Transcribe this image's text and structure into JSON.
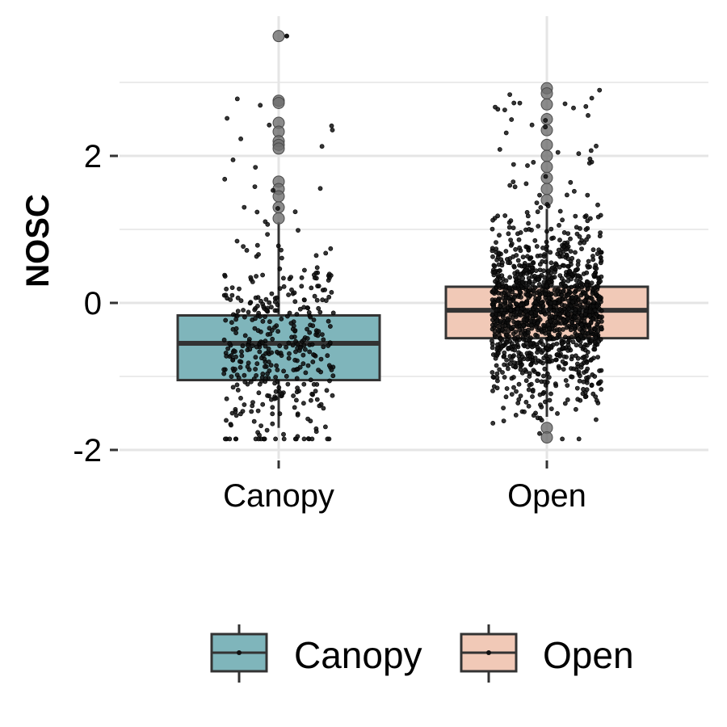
{
  "chart_data": {
    "type": "boxplot",
    "title": "",
    "xlabel": "",
    "ylabel": "NOSC",
    "categories": [
      "Canopy",
      "Open"
    ],
    "yticks": [
      -2,
      0,
      2
    ],
    "ylim": [
      -2.1,
      3.75
    ],
    "grid": true,
    "legend_position": "bottom",
    "legend": [
      {
        "label": "Canopy",
        "color": "#7fb5bb"
      },
      {
        "label": "Open",
        "color": "#f1c9b7"
      }
    ],
    "series": [
      {
        "name": "Canopy",
        "color": "#7fb5bb",
        "min": -1.7,
        "q1": -1.05,
        "median": -0.55,
        "q3": -0.17,
        "max": 1.1,
        "outliers": [
          3.63,
          2.75,
          2.72,
          2.45,
          2.33,
          2.2,
          2.15,
          2.1,
          1.65,
          1.55,
          1.45,
          1.3,
          1.15
        ],
        "jitter_count": 420
      },
      {
        "name": "Open",
        "color": "#f1c9b7",
        "min": -1.55,
        "q1": -0.48,
        "median": -0.1,
        "q3": 0.22,
        "max": 1.28,
        "outliers": [
          2.92,
          2.85,
          2.7,
          2.5,
          2.35,
          2.15,
          2.0,
          1.85,
          1.7,
          1.55,
          1.4,
          -1.7,
          -1.83
        ],
        "jitter_count": 1400
      }
    ]
  }
}
